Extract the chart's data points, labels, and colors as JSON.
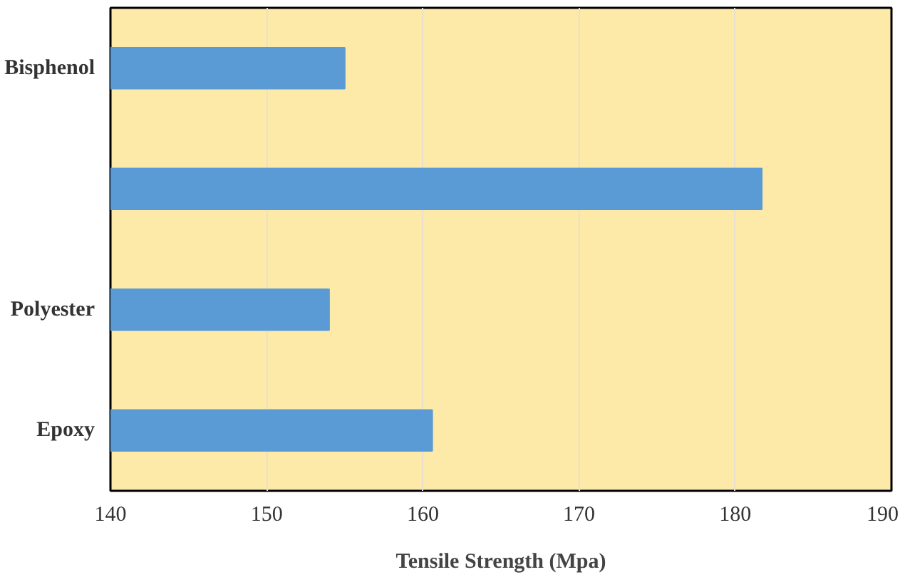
{
  "chart_data": {
    "type": "bar",
    "orientation": "horizontal",
    "categories": [
      "Bisphenol",
      null,
      "Polyester",
      "Epoxy"
    ],
    "values": [
      155,
      181.7,
      154,
      160.6
    ],
    "color": "#5b9bd5",
    "xlabel": "Tensile Strength (Mpa)",
    "xlim": [
      140,
      190
    ],
    "xticks": [
      140,
      150,
      160,
      170,
      180,
      190
    ],
    "grid": "x"
  }
}
